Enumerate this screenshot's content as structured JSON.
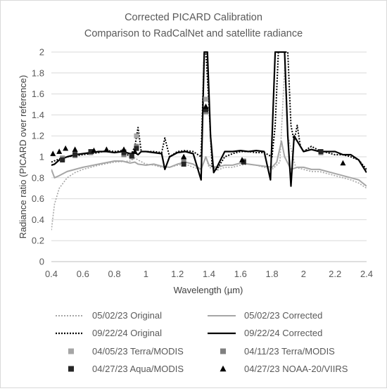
{
  "chart_data": {
    "type": "line",
    "title": [
      "Corrected PICARD Calibration",
      "Comparison to RadCalNet and satellite radiance"
    ],
    "xlabel": "Wavelength (µm)",
    "ylabel": "Radiance ratio (PICARD over reference)",
    "xlim": [
      0.4,
      2.4
    ],
    "ylim": [
      0,
      2
    ],
    "x_ticks": [
      0.4,
      0.6,
      0.8,
      1,
      1.2,
      1.4,
      1.6,
      1.8,
      2,
      2.2,
      2.4
    ],
    "y_ticks": [
      0,
      0.2,
      0.4,
      0.6,
      0.8,
      1,
      1.2,
      1.4,
      1.6,
      1.8,
      2
    ],
    "grid": "horizontal",
    "legend_position": "bottom",
    "series": [
      {
        "name": "05/02/23 Original",
        "kind": "line",
        "style": "dotted",
        "color": "#a6a6a6",
        "points": [
          [
            0.4,
            0.3
          ],
          [
            0.42,
            0.55
          ],
          [
            0.45,
            0.7
          ],
          [
            0.5,
            0.8
          ],
          [
            0.55,
            0.85
          ],
          [
            0.6,
            0.88
          ],
          [
            0.7,
            0.92
          ],
          [
            0.8,
            0.95
          ],
          [
            0.9,
            0.96
          ],
          [
            0.93,
            0.99
          ],
          [
            0.95,
            0.97
          ],
          [
            1.0,
            0.93
          ],
          [
            1.05,
            0.92
          ],
          [
            1.1,
            0.9
          ],
          [
            1.15,
            0.9
          ],
          [
            1.2,
            0.92
          ],
          [
            1.25,
            0.93
          ],
          [
            1.3,
            0.9
          ],
          [
            1.35,
            0.88
          ],
          [
            1.38,
            1.0
          ],
          [
            1.4,
            0.9
          ],
          [
            1.45,
            0.87
          ],
          [
            1.5,
            0.9
          ],
          [
            1.55,
            0.9
          ],
          [
            1.6,
            0.92
          ],
          [
            1.65,
            0.93
          ],
          [
            1.7,
            0.92
          ],
          [
            1.75,
            0.9
          ],
          [
            1.8,
            0.88
          ],
          [
            1.85,
            0.95
          ],
          [
            1.88,
            1.85
          ],
          [
            1.9,
            1.2
          ],
          [
            1.95,
            0.9
          ],
          [
            2.0,
            0.88
          ],
          [
            2.05,
            0.86
          ],
          [
            2.1,
            0.86
          ],
          [
            2.15,
            0.84
          ],
          [
            2.2,
            0.82
          ],
          [
            2.25,
            0.8
          ],
          [
            2.3,
            0.78
          ],
          [
            2.35,
            0.75
          ],
          [
            2.4,
            0.7
          ]
        ]
      },
      {
        "name": "05/02/23 Corrected",
        "kind": "line",
        "style": "solid",
        "color": "#a6a6a6",
        "points": [
          [
            0.4,
            0.88
          ],
          [
            0.42,
            0.8
          ],
          [
            0.45,
            0.82
          ],
          [
            0.5,
            0.86
          ],
          [
            0.55,
            0.88
          ],
          [
            0.6,
            0.9
          ],
          [
            0.7,
            0.93
          ],
          [
            0.8,
            0.96
          ],
          [
            0.85,
            0.96
          ],
          [
            0.9,
            0.94
          ],
          [
            0.93,
            0.95
          ],
          [
            0.95,
            0.93
          ],
          [
            1.0,
            0.92
          ],
          [
            1.05,
            0.93
          ],
          [
            1.1,
            0.91
          ],
          [
            1.15,
            0.9
          ],
          [
            1.2,
            0.93
          ],
          [
            1.25,
            0.95
          ],
          [
            1.3,
            0.93
          ],
          [
            1.35,
            0.88
          ],
          [
            1.38,
            1.0
          ],
          [
            1.4,
            0.92
          ],
          [
            1.45,
            0.9
          ],
          [
            1.5,
            0.92
          ],
          [
            1.55,
            0.92
          ],
          [
            1.6,
            0.94
          ],
          [
            1.65,
            0.93
          ],
          [
            1.7,
            0.92
          ],
          [
            1.75,
            0.91
          ],
          [
            1.8,
            0.9
          ],
          [
            1.83,
            0.95
          ],
          [
            1.86,
            1.15
          ],
          [
            1.88,
            1.0
          ],
          [
            1.92,
            0.88
          ],
          [
            1.96,
            0.9
          ],
          [
            2.0,
            0.9
          ],
          [
            2.05,
            0.88
          ],
          [
            2.1,
            0.88
          ],
          [
            2.15,
            0.86
          ],
          [
            2.2,
            0.84
          ],
          [
            2.25,
            0.82
          ],
          [
            2.3,
            0.8
          ],
          [
            2.35,
            0.78
          ],
          [
            2.4,
            0.72
          ]
        ]
      },
      {
        "name": "09/22/24 Original",
        "kind": "line",
        "style": "dotted",
        "color": "#000000",
        "points": [
          [
            0.4,
            0.95
          ],
          [
            0.45,
            0.98
          ],
          [
            0.5,
            1.0
          ],
          [
            0.55,
            1.01
          ],
          [
            0.6,
            1.02
          ],
          [
            0.65,
            1.03
          ],
          [
            0.7,
            1.04
          ],
          [
            0.75,
            1.06
          ],
          [
            0.8,
            1.05
          ],
          [
            0.85,
            1.06
          ],
          [
            0.9,
            1.0
          ],
          [
            0.93,
            1.1
          ],
          [
            0.95,
            1.28
          ],
          [
            0.97,
            1.05
          ],
          [
            1.0,
            1.05
          ],
          [
            1.05,
            1.05
          ],
          [
            1.1,
            1.04
          ],
          [
            1.12,
            1.18
          ],
          [
            1.15,
            1.0
          ],
          [
            1.2,
            1.05
          ],
          [
            1.25,
            1.06
          ],
          [
            1.3,
            1.05
          ],
          [
            1.35,
            1.0
          ],
          [
            1.37,
            2.0
          ],
          [
            1.38,
            2.0
          ],
          [
            1.4,
            1.5
          ],
          [
            1.42,
            0.9
          ],
          [
            1.45,
            0.88
          ],
          [
            1.5,
            1.0
          ],
          [
            1.55,
            1.03
          ],
          [
            1.6,
            1.05
          ],
          [
            1.65,
            1.05
          ],
          [
            1.7,
            1.04
          ],
          [
            1.75,
            1.04
          ],
          [
            1.8,
            1.0
          ],
          [
            1.82,
            1.3
          ],
          [
            1.84,
            2.0
          ],
          [
            1.9,
            2.0
          ],
          [
            1.92,
            1.3
          ],
          [
            1.94,
            1.15
          ],
          [
            1.96,
            1.3
          ],
          [
            1.98,
            1.1
          ],
          [
            2.0,
            1.05
          ],
          [
            2.05,
            1.1
          ],
          [
            2.1,
            1.06
          ],
          [
            2.15,
            1.04
          ],
          [
            2.2,
            1.02
          ],
          [
            2.25,
            1.02
          ],
          [
            2.3,
            1.0
          ],
          [
            2.35,
            0.97
          ],
          [
            2.4,
            0.88
          ]
        ]
      },
      {
        "name": "09/22/24 Corrected",
        "kind": "line",
        "style": "solid",
        "color": "#000000",
        "points": [
          [
            0.4,
            0.92
          ],
          [
            0.42,
            0.93
          ],
          [
            0.45,
            0.97
          ],
          [
            0.5,
            1.0
          ],
          [
            0.55,
            1.02
          ],
          [
            0.6,
            1.03
          ],
          [
            0.65,
            1.04
          ],
          [
            0.7,
            1.05
          ],
          [
            0.75,
            1.05
          ],
          [
            0.8,
            1.04
          ],
          [
            0.85,
            1.05
          ],
          [
            0.9,
            1.03
          ],
          [
            0.93,
            1.04
          ],
          [
            0.95,
            1.02
          ],
          [
            0.97,
            1.05
          ],
          [
            1.0,
            1.05
          ],
          [
            1.05,
            1.04
          ],
          [
            1.1,
            1.03
          ],
          [
            1.12,
            0.88
          ],
          [
            1.15,
            1.0
          ],
          [
            1.2,
            1.04
          ],
          [
            1.25,
            1.05
          ],
          [
            1.3,
            1.03
          ],
          [
            1.35,
            0.78
          ],
          [
            1.37,
            2.0
          ],
          [
            1.39,
            2.0
          ],
          [
            1.41,
            1.2
          ],
          [
            1.43,
            0.85
          ],
          [
            1.45,
            0.9
          ],
          [
            1.5,
            1.05
          ],
          [
            1.55,
            1.05
          ],
          [
            1.6,
            1.06
          ],
          [
            1.65,
            1.05
          ],
          [
            1.7,
            1.06
          ],
          [
            1.75,
            1.05
          ],
          [
            1.79,
            0.78
          ],
          [
            1.82,
            2.0
          ],
          [
            1.88,
            2.0
          ],
          [
            1.9,
            1.2
          ],
          [
            1.92,
            0.72
          ],
          [
            1.94,
            1.2
          ],
          [
            1.96,
            1.15
          ],
          [
            2.0,
            1.05
          ],
          [
            2.05,
            1.07
          ],
          [
            2.1,
            1.05
          ],
          [
            2.15,
            1.05
          ],
          [
            2.2,
            1.05
          ],
          [
            2.25,
            1.02
          ],
          [
            2.3,
            1.02
          ],
          [
            2.35,
            0.97
          ],
          [
            2.4,
            0.85
          ]
        ]
      },
      {
        "name": "04/05/23 Terra/MODIS",
        "kind": "marker",
        "marker": "square",
        "color": "#a6a6a6",
        "points": [
          [
            0.47,
            0.99
          ],
          [
            0.55,
            1.01
          ],
          [
            0.65,
            1.04
          ],
          [
            0.86,
            1.05
          ],
          [
            0.94,
            1.2
          ],
          [
            1.38,
            1.55
          ]
        ]
      },
      {
        "name": "04/11/23 Terra/MODIS",
        "kind": "marker",
        "marker": "square",
        "color": "#808080",
        "points": [
          [
            0.47,
            0.98
          ],
          [
            0.55,
            1.03
          ],
          [
            0.65,
            1.04
          ],
          [
            0.86,
            1.02
          ],
          [
            0.91,
            1.0
          ],
          [
            0.94,
            1.1
          ],
          [
            1.24,
            0.97
          ],
          [
            1.38,
            1.43
          ],
          [
            1.62,
            0.96
          ],
          [
            2.11,
            1.04
          ]
        ]
      },
      {
        "name": "04/27/23 Aqua/MODIS",
        "kind": "marker",
        "marker": "square",
        "color": "#262626",
        "points": [
          [
            0.47,
            0.97
          ],
          [
            0.55,
            1.02
          ],
          [
            0.65,
            1.05
          ],
          [
            0.86,
            1.04
          ],
          [
            0.91,
            1.01
          ],
          [
            0.94,
            1.08
          ],
          [
            1.24,
            0.93
          ],
          [
            1.38,
            1.45
          ],
          [
            1.62,
            0.95
          ],
          [
            2.11,
            1.05
          ]
        ]
      },
      {
        "name": "04/27/23 NOAA-20/VIIRS",
        "kind": "marker",
        "marker": "triangle",
        "color": "#000000",
        "points": [
          [
            0.41,
            1.03
          ],
          [
            0.45,
            1.05
          ],
          [
            0.49,
            1.08
          ],
          [
            0.55,
            1.07
          ],
          [
            0.67,
            1.06
          ],
          [
            0.75,
            1.07
          ],
          [
            0.86,
            1.07
          ],
          [
            0.93,
            1.05
          ],
          [
            1.24,
            1.0
          ],
          [
            1.38,
            1.48
          ],
          [
            1.61,
            0.97
          ],
          [
            2.25,
            0.94
          ]
        ]
      }
    ]
  }
}
